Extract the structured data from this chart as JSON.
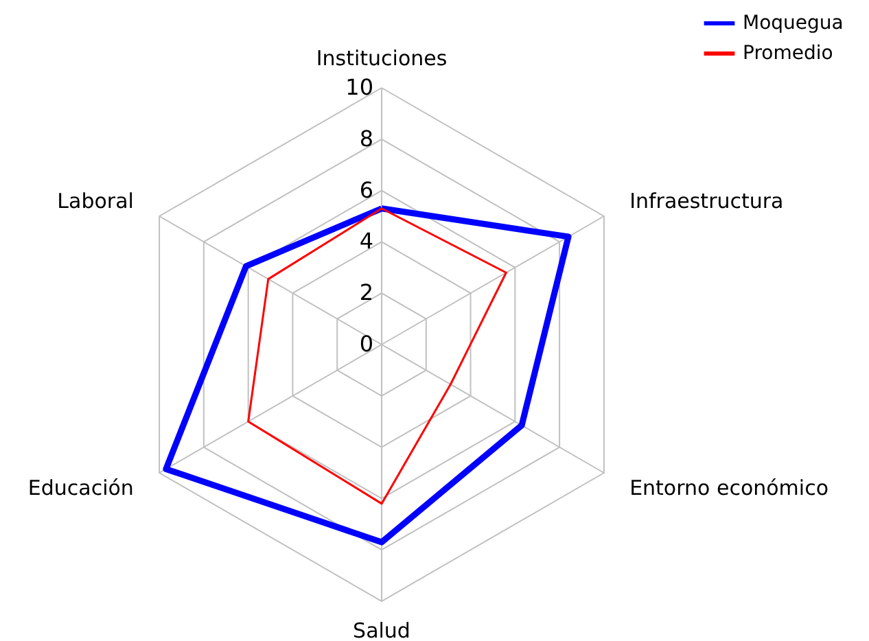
{
  "chart_data": {
    "type": "radar",
    "categories": [
      "Instituciones",
      "Infraestructura",
      "Entorno económico",
      "Salud",
      "Educación",
      "Laboral"
    ],
    "series": [
      {
        "name": "Moquegua",
        "color": "#0000ff",
        "values": [
          5.3,
          8.4,
          6.3,
          7.7,
          9.7,
          6.1
        ]
      },
      {
        "name": "Promedio",
        "color": "#ff0000",
        "values": [
          5.3,
          5.6,
          3.1,
          6.2,
          6.0,
          5.1
        ]
      }
    ],
    "ylim": [
      0,
      10
    ],
    "yticks": [
      0,
      2,
      4,
      6,
      8,
      10
    ],
    "grid": true,
    "legend": "top right"
  }
}
